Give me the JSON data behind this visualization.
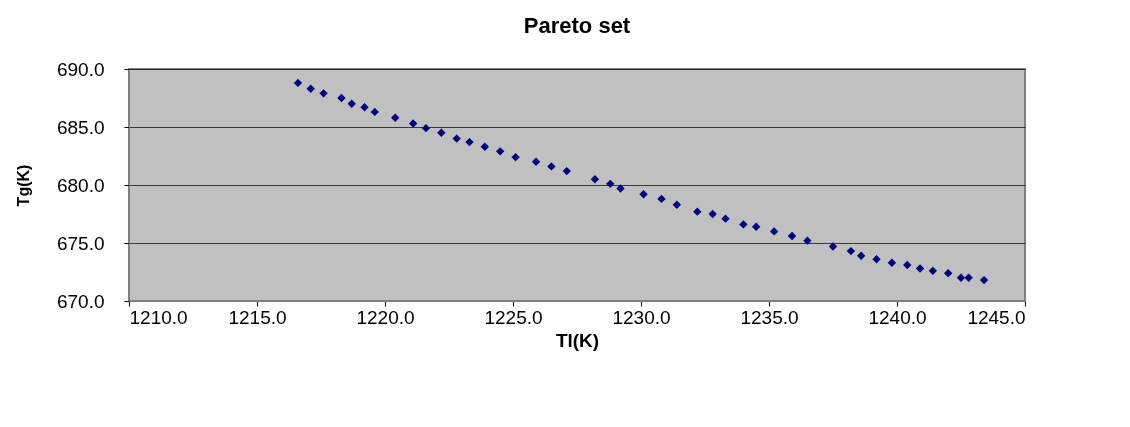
{
  "chart_data": {
    "type": "scatter",
    "title": "Pareto set",
    "xlabel": "Tl(K)",
    "ylabel": "Tg(K)",
    "x": [
      1216.6,
      1217.1,
      1217.6,
      1218.3,
      1218.7,
      1219.2,
      1219.6,
      1220.4,
      1221.1,
      1221.6,
      1222.2,
      1222.8,
      1223.3,
      1223.9,
      1224.5,
      1225.1,
      1225.9,
      1226.5,
      1227.1,
      1228.2,
      1228.8,
      1229.2,
      1230.1,
      1230.8,
      1231.4,
      1232.2,
      1232.8,
      1233.3,
      1234.0,
      1234.5,
      1235.2,
      1235.9,
      1236.5,
      1237.5,
      1238.2,
      1238.6,
      1239.2,
      1239.8,
      1240.4,
      1240.9,
      1241.4,
      1242.0,
      1242.5,
      1242.8,
      1243.4
    ],
    "series": [
      {
        "color": "#000080",
        "values": [
          688.8,
          688.3,
          687.9,
          687.5,
          687.0,
          686.7,
          686.3,
          685.8,
          685.3,
          684.9,
          684.5,
          684.0,
          683.7,
          683.3,
          682.9,
          682.4,
          682.0,
          681.6,
          681.2,
          680.5,
          680.1,
          679.7,
          679.2,
          678.8,
          678.3,
          677.7,
          677.5,
          677.1,
          676.6,
          676.4,
          676.0,
          675.6,
          675.2,
          674.7,
          674.3,
          673.9,
          673.6,
          673.3,
          673.1,
          672.8,
          672.6,
          672.4,
          672.0,
          672.0,
          671.8
        ]
      }
    ],
    "xlim": [
      1210,
      1245
    ],
    "xticks": [
      {
        "value": 1210,
        "label": "1210.0"
      },
      {
        "value": 1215,
        "label": "1215.0"
      },
      {
        "value": 1220,
        "label": "1220.0"
      },
      {
        "value": 1225,
        "label": "1225.0"
      },
      {
        "value": 1230,
        "label": "1230.0"
      },
      {
        "value": 1235,
        "label": "1235.0"
      },
      {
        "value": 1240,
        "label": "1240.0"
      },
      {
        "value": 1245,
        "label": "1245.0"
      }
    ],
    "ylim": [
      670,
      690
    ],
    "yticks": [
      {
        "value": 670,
        "label": "670.0"
      },
      {
        "value": 675,
        "label": "675.0"
      },
      {
        "value": 680,
        "label": "680.0"
      },
      {
        "value": 685,
        "label": "685.0"
      },
      {
        "value": 690,
        "label": "690.0"
      }
    ],
    "grid": "y",
    "marker": "diamond"
  }
}
